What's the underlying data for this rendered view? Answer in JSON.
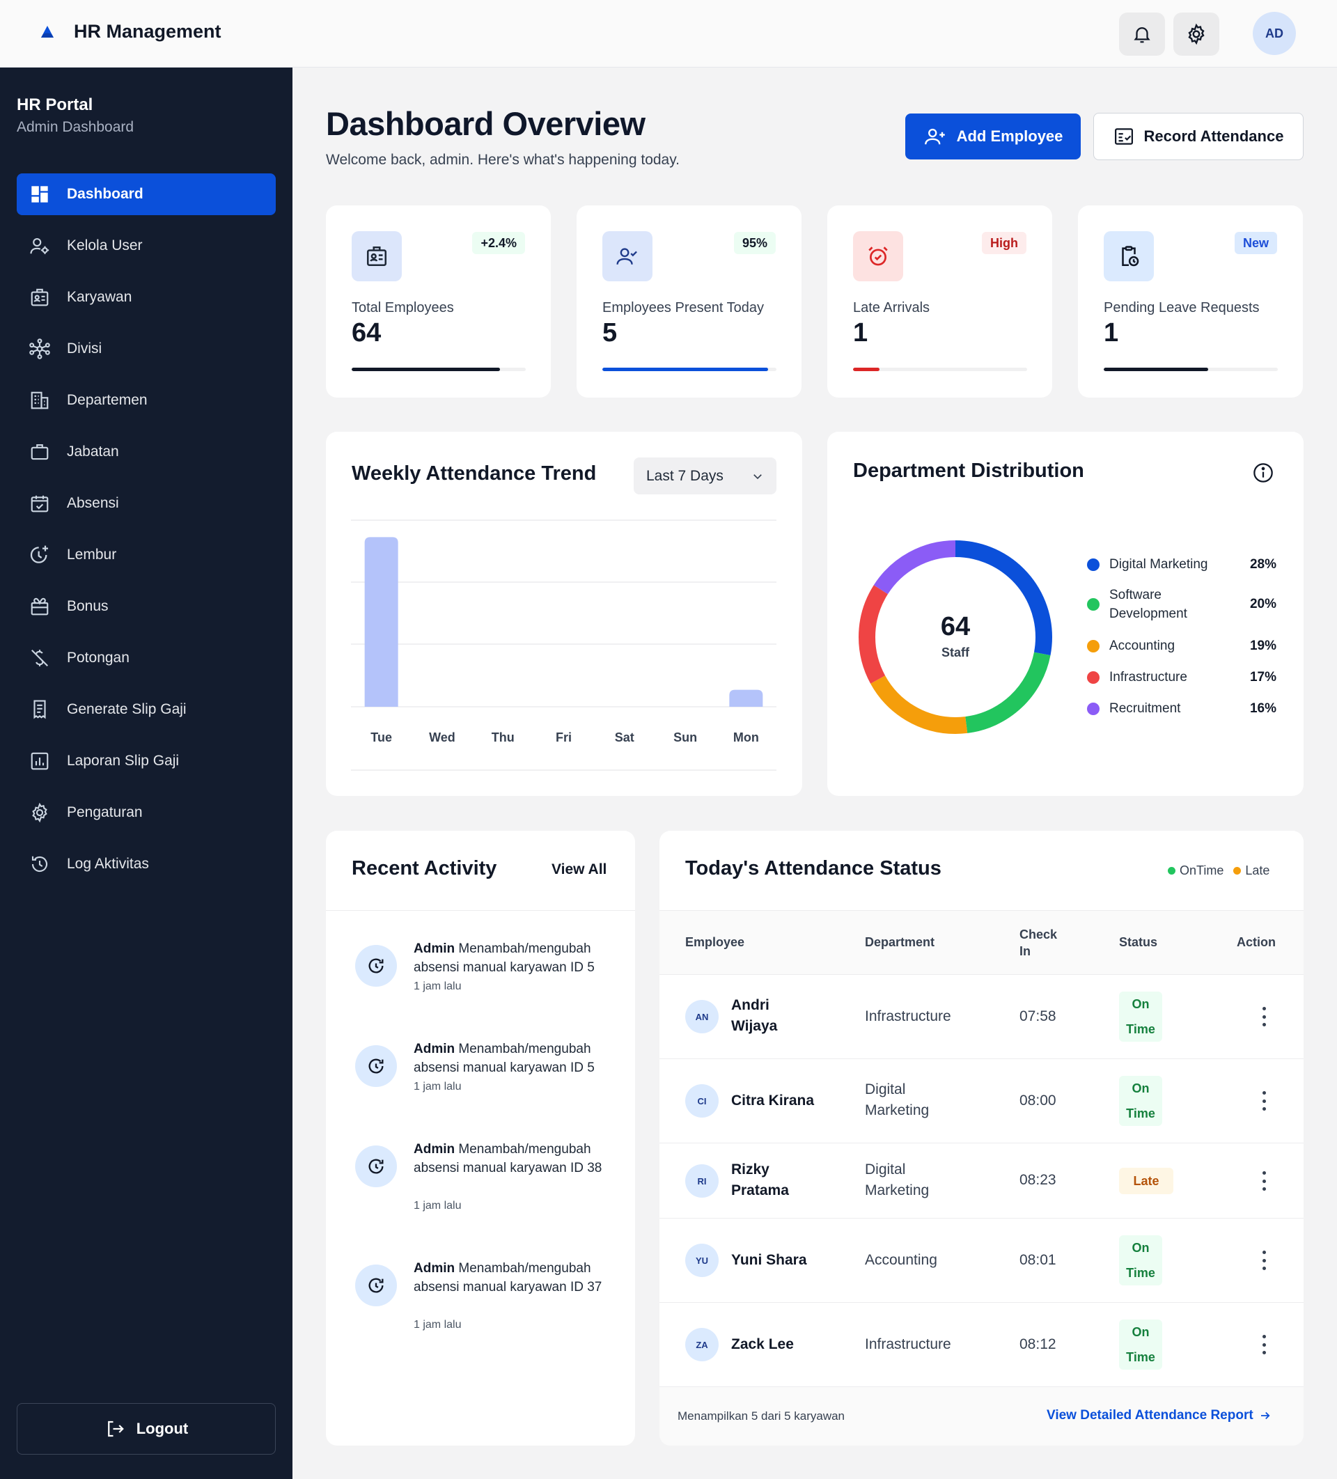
{
  "app": {
    "title": "HR Management"
  },
  "topbar": {
    "avatar_initials": "AD"
  },
  "sidebar": {
    "title": "HR Portal",
    "subtitle": "Admin Dashboard",
    "items": [
      {
        "label": "Dashboard",
        "icon": "dashboard-icon",
        "active": true
      },
      {
        "label": "Kelola User",
        "icon": "user-manage-icon"
      },
      {
        "label": "Karyawan",
        "icon": "id-badge-icon"
      },
      {
        "label": "Divisi",
        "icon": "network-icon"
      },
      {
        "label": "Departemen",
        "icon": "building-icon"
      },
      {
        "label": "Jabatan",
        "icon": "briefcase-icon"
      },
      {
        "label": "Absensi",
        "icon": "calendar-check-icon"
      },
      {
        "label": "Lembur",
        "icon": "clock-plus-icon"
      },
      {
        "label": "Bonus",
        "icon": "gift-icon"
      },
      {
        "label": "Potongan",
        "icon": "money-off-icon"
      },
      {
        "label": "Generate Slip Gaji",
        "icon": "receipt-icon"
      },
      {
        "label": "Laporan Slip Gaji",
        "icon": "bar-report-icon"
      },
      {
        "label": "Pengaturan",
        "icon": "gear-icon"
      },
      {
        "label": "Log Aktivitas",
        "icon": "history-icon"
      }
    ],
    "logout_label": "Logout"
  },
  "header": {
    "title": "Dashboard Overview",
    "subtitle": "Welcome back, admin. Here's what's happening today.",
    "add_employee_label": "Add Employee",
    "record_attendance_label": "Record Attendance"
  },
  "stats": [
    {
      "label": "Total Employees",
      "value": "64",
      "badge": "+2.4%",
      "progress": 0.85,
      "color": "#111827"
    },
    {
      "label": "Employees Present Today",
      "value": "5",
      "badge": "95%",
      "progress": 0.95,
      "color": "#0b50da"
    },
    {
      "label": "Late Arrivals",
      "value": "1",
      "badge": "High",
      "progress": 0.15,
      "color": "#dc2626"
    },
    {
      "label": "Pending Leave Requests",
      "value": "1",
      "badge": "New",
      "progress": 0.6,
      "color": "#111827"
    }
  ],
  "weekly": {
    "title": "Weekly Attendance Trend",
    "range_label": "Last 7 Days"
  },
  "chart_data": {
    "type": "bar",
    "categories": [
      "Tue",
      "Wed",
      "Thu",
      "Fri",
      "Sat",
      "Sun",
      "Mon"
    ],
    "values": [
      5,
      0,
      0,
      0,
      0,
      0,
      0.5
    ],
    "ylim": [
      0,
      5.5
    ],
    "grid": true,
    "color": "#b4c3fa"
  },
  "departments": {
    "title": "Department Distribution",
    "total": "64",
    "total_label": "Staff",
    "items": [
      {
        "name": "Digital Marketing",
        "pct": "28%",
        "value": 28,
        "color": "#0b50da"
      },
      {
        "name": "Software Development",
        "pct": "20%",
        "value": 20,
        "color": "#22c55e"
      },
      {
        "name": "Accounting",
        "pct": "19%",
        "value": 19,
        "color": "#f59e0b"
      },
      {
        "name": "Infrastructure",
        "pct": "17%",
        "value": 17,
        "color": "#ef4444"
      },
      {
        "name": "Recruitment",
        "pct": "16%",
        "value": 16,
        "color": "#8b5cf6"
      }
    ]
  },
  "activity": {
    "title": "Recent Activity",
    "view_all": "View All",
    "items": [
      {
        "actor": "Admin",
        "text": "Menambah/mengubah absensi manual karyawan ID 5",
        "time": "1 jam lalu"
      },
      {
        "actor": "Admin",
        "text": "Menambah/mengubah absensi manual karyawan ID 5",
        "time": "1 jam lalu"
      },
      {
        "actor": "Admin",
        "text": "Menambah/mengubah absensi manual karyawan ID 38",
        "time": "1 jam lalu"
      },
      {
        "actor": "Admin",
        "text": "Menambah/mengubah absensi manual karyawan ID 37",
        "time": "1 jam lalu"
      }
    ]
  },
  "attendance": {
    "title": "Today's Attendance Status",
    "legend_ontime": "OnTime",
    "legend_late": "Late",
    "columns": {
      "employee": "Employee",
      "department": "Department",
      "checkin": "Check In",
      "status": "Status",
      "action": "Action"
    },
    "rows": [
      {
        "initials": "AN",
        "name": "Andri Wijaya",
        "department": "Infrastructure",
        "checkin": "07:58",
        "status": "On Time"
      },
      {
        "initials": "CI",
        "name": "Citra Kirana",
        "department": "Digital Marketing",
        "checkin": "08:00",
        "status": "On Time"
      },
      {
        "initials": "RI",
        "name": "Rizky Pratama",
        "department": "Digital Marketing",
        "checkin": "08:23",
        "status": "Late"
      },
      {
        "initials": "YU",
        "name": "Yuni Shara",
        "department": "Accounting",
        "checkin": "08:01",
        "status": "On Time"
      },
      {
        "initials": "ZA",
        "name": "Zack Lee",
        "department": "Infrastructure",
        "checkin": "08:12",
        "status": "On Time"
      }
    ],
    "footer_count": "Menampilkan 5 dari 5 karyawan",
    "footer_link": "View Detailed Attendance Report"
  }
}
